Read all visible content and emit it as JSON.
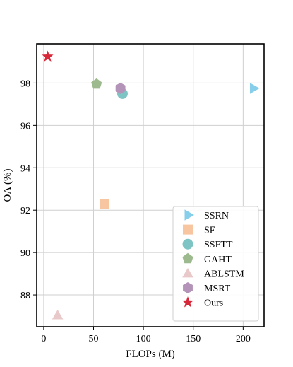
{
  "chart_data": {
    "type": "scatter",
    "xlabel": "FLOPs (M)",
    "ylabel": "OA (%)",
    "xlim": [
      -7,
      221
    ],
    "ylim": [
      86.5,
      99.85
    ],
    "xticks": [
      0,
      50,
      100,
      150,
      200
    ],
    "yticks": [
      88,
      90,
      92,
      94,
      96,
      98
    ],
    "grid": true,
    "legend_position": "lower-right",
    "series": [
      {
        "name": "SSRN",
        "marker": "triangle-right",
        "color": "#87CEEB",
        "x": [
          210
        ],
        "y": [
          97.75
        ]
      },
      {
        "name": "SF",
        "marker": "square",
        "color": "#F7C59F",
        "x": [
          61
        ],
        "y": [
          92.3
        ]
      },
      {
        "name": "SSFTT",
        "marker": "circle",
        "color": "#7FC4C4",
        "x": [
          79
        ],
        "y": [
          97.5
        ]
      },
      {
        "name": "GAHT",
        "marker": "pentagon",
        "color": "#9DBA8E",
        "x": [
          53
        ],
        "y": [
          97.95
        ]
      },
      {
        "name": "ABLSTM",
        "marker": "triangle-up",
        "color": "#E8C8C8",
        "x": [
          14
        ],
        "y": [
          87.05
        ]
      },
      {
        "name": "MSRT",
        "marker": "hexagon",
        "color": "#B493B8",
        "x": [
          77
        ],
        "y": [
          97.75
        ]
      },
      {
        "name": "Ours",
        "marker": "star",
        "color": "#D62839",
        "x": [
          4
        ],
        "y": [
          99.25
        ]
      }
    ]
  }
}
